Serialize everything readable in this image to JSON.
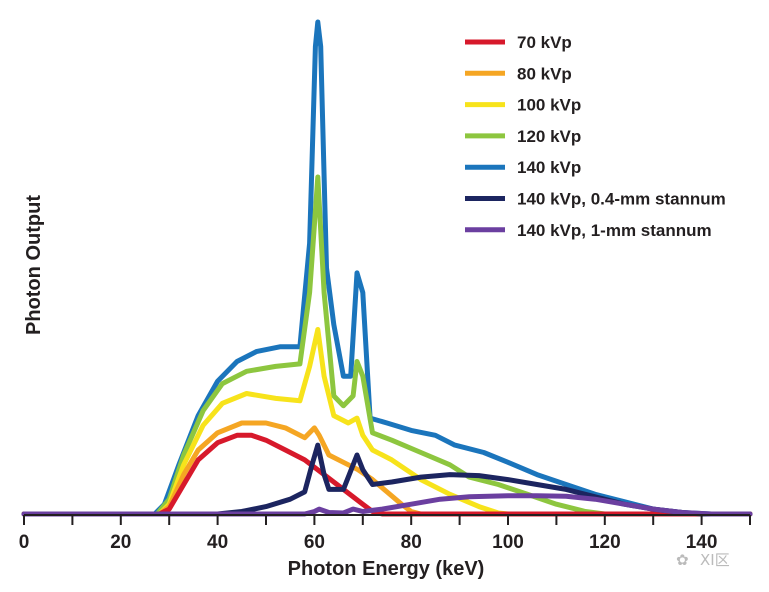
{
  "chart_data": {
    "type": "line",
    "title": "",
    "xlabel": "Photon Energy (keV)",
    "ylabel": "Photon Output",
    "xlim": [
      0,
      150
    ],
    "ylim": [
      0,
      100
    ],
    "xticks": [
      0,
      20,
      40,
      60,
      80,
      100,
      120,
      140
    ],
    "minor_xticks": [
      10,
      30,
      50,
      70,
      90,
      110,
      130,
      150
    ],
    "grid": false,
    "legend_position": "top-right",
    "watermark": "XI区",
    "series": [
      {
        "name": "70 kVp",
        "color": "#d7192b",
        "points": [
          [
            0,
            0
          ],
          [
            28,
            0
          ],
          [
            30,
            1
          ],
          [
            33,
            6
          ],
          [
            36,
            11
          ],
          [
            40,
            14.5
          ],
          [
            44,
            16
          ],
          [
            47,
            16
          ],
          [
            50,
            15
          ],
          [
            54,
            13
          ],
          [
            58,
            11
          ],
          [
            62,
            8
          ],
          [
            66,
            5
          ],
          [
            70,
            2
          ],
          [
            72,
            0.5
          ],
          [
            74,
            0
          ],
          [
            150,
            0
          ]
        ]
      },
      {
        "name": "80 kVp",
        "color": "#f5a623",
        "points": [
          [
            0,
            0
          ],
          [
            28,
            0
          ],
          [
            30,
            1.5
          ],
          [
            33,
            8
          ],
          [
            36,
            13
          ],
          [
            40,
            16.5
          ],
          [
            45,
            18.5
          ],
          [
            50,
            18.5
          ],
          [
            54,
            17.5
          ],
          [
            58,
            15.5
          ],
          [
            60,
            17.5
          ],
          [
            61,
            16
          ],
          [
            63,
            12
          ],
          [
            66,
            10.5
          ],
          [
            69,
            9
          ],
          [
            72,
            7
          ],
          [
            75,
            4.5
          ],
          [
            78,
            2
          ],
          [
            80,
            0.5
          ],
          [
            82,
            0
          ],
          [
            150,
            0
          ]
        ]
      },
      {
        "name": "100 kVp",
        "color": "#f7e31b",
        "points": [
          [
            0,
            0
          ],
          [
            28,
            0
          ],
          [
            30,
            2
          ],
          [
            33,
            10
          ],
          [
            37,
            18
          ],
          [
            41,
            22.5
          ],
          [
            46,
            24.5
          ],
          [
            52,
            23.5
          ],
          [
            57,
            23
          ],
          [
            59,
            30
          ],
          [
            60.7,
            37.5
          ],
          [
            62,
            28
          ],
          [
            64,
            20
          ],
          [
            67,
            18.5
          ],
          [
            68.8,
            19.5
          ],
          [
            70,
            16
          ],
          [
            72,
            13
          ],
          [
            76,
            11
          ],
          [
            82,
            7
          ],
          [
            88,
            4
          ],
          [
            94,
            1.5
          ],
          [
            98,
            0.2
          ],
          [
            100,
            0
          ],
          [
            150,
            0
          ]
        ]
      },
      {
        "name": "120 kVp",
        "color": "#8dc63f",
        "points": [
          [
            0,
            0
          ],
          [
            27.5,
            0
          ],
          [
            30,
            3
          ],
          [
            33,
            12
          ],
          [
            37,
            21
          ],
          [
            41,
            26.5
          ],
          [
            46,
            29
          ],
          [
            52,
            30
          ],
          [
            57,
            30.5
          ],
          [
            59,
            45
          ],
          [
            60.7,
            68.5
          ],
          [
            62,
            45
          ],
          [
            64,
            24
          ],
          [
            66,
            22
          ],
          [
            68,
            24
          ],
          [
            68.8,
            31
          ],
          [
            70,
            28
          ],
          [
            72,
            16.5
          ],
          [
            76,
            15
          ],
          [
            82,
            12.5
          ],
          [
            88,
            10
          ],
          [
            92,
            7.5
          ],
          [
            98,
            6
          ],
          [
            104,
            4
          ],
          [
            110,
            2
          ],
          [
            116,
            0.5
          ],
          [
            120,
            0
          ],
          [
            150,
            0
          ]
        ]
      },
      {
        "name": "140 kVp",
        "color": "#1b75bc",
        "points": [
          [
            0,
            0
          ],
          [
            27,
            0
          ],
          [
            29,
            2
          ],
          [
            32,
            10
          ],
          [
            36,
            20
          ],
          [
            40,
            27
          ],
          [
            44,
            31
          ],
          [
            48,
            33
          ],
          [
            53,
            34
          ],
          [
            57,
            34
          ],
          [
            59,
            55
          ],
          [
            60.2,
            95
          ],
          [
            60.7,
            100
          ],
          [
            61.3,
            95
          ],
          [
            62.5,
            50
          ],
          [
            64,
            38.5
          ],
          [
            66,
            28
          ],
          [
            67.5,
            28
          ],
          [
            68.8,
            49
          ],
          [
            70,
            45
          ],
          [
            71.5,
            19.5
          ],
          [
            75,
            18.5
          ],
          [
            80,
            17
          ],
          [
            85,
            16
          ],
          [
            89,
            14
          ],
          [
            95,
            12.5
          ],
          [
            100,
            10.5
          ],
          [
            106,
            8
          ],
          [
            112,
            6
          ],
          [
            118,
            4
          ],
          [
            124,
            2.5
          ],
          [
            130,
            1
          ],
          [
            136,
            0.3
          ],
          [
            142,
            0
          ],
          [
            150,
            0
          ]
        ]
      },
      {
        "name": "140 kVp, 0.4-mm stannum",
        "color": "#1c2560",
        "points": [
          [
            0,
            0
          ],
          [
            5,
            0
          ],
          [
            40,
            0
          ],
          [
            45,
            0.5
          ],
          [
            50,
            1.5
          ],
          [
            55,
            3
          ],
          [
            58,
            4.5
          ],
          [
            59.5,
            10
          ],
          [
            60.7,
            14
          ],
          [
            62,
            8
          ],
          [
            63,
            5
          ],
          [
            66,
            5
          ],
          [
            68.8,
            12
          ],
          [
            70,
            9
          ],
          [
            72,
            6
          ],
          [
            76,
            6.5
          ],
          [
            82,
            7.5
          ],
          [
            88,
            8
          ],
          [
            94,
            7.8
          ],
          [
            100,
            7
          ],
          [
            106,
            6
          ],
          [
            112,
            5
          ],
          [
            118,
            3.5
          ],
          [
            124,
            2
          ],
          [
            130,
            1
          ],
          [
            136,
            0.3
          ],
          [
            140,
            0
          ],
          [
            150,
            0
          ]
        ]
      },
      {
        "name": "140 kVp, 1-mm stannum",
        "color": "#6b3fa0",
        "points": [
          [
            0,
            0
          ],
          [
            58,
            0
          ],
          [
            60,
            0.5
          ],
          [
            61,
            1
          ],
          [
            63,
            0.3
          ],
          [
            66,
            0.2
          ],
          [
            68,
            1
          ],
          [
            70,
            0.5
          ],
          [
            74,
            1
          ],
          [
            80,
            2
          ],
          [
            86,
            3
          ],
          [
            92,
            3.5
          ],
          [
            100,
            3.7
          ],
          [
            106,
            3.7
          ],
          [
            112,
            3.6
          ],
          [
            118,
            3
          ],
          [
            124,
            2
          ],
          [
            130,
            1
          ],
          [
            136,
            0.3
          ],
          [
            142,
            0
          ],
          [
            150,
            0
          ]
        ]
      }
    ]
  }
}
